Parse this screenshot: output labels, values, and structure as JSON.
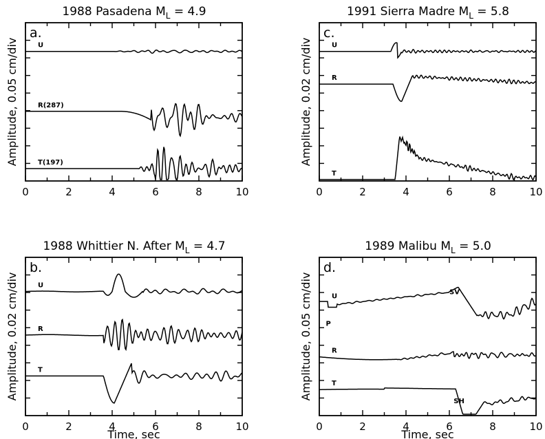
{
  "chart_data": [
    {
      "type": "line",
      "panel": "a.",
      "title_main": "1988 Pasadena M",
      "title_sub": "L",
      "title_rest": " = 4.9",
      "ylabel": "Amplitude, 0.05 cm/div",
      "xlabel": "",
      "xlim": [
        0,
        10
      ],
      "x_ticks": [
        "0",
        "2",
        "4",
        "6",
        "8",
        "10"
      ],
      "grid": false,
      "series": [
        {
          "name": "U",
          "baseline": 0.8,
          "onset": 4.0,
          "shape": "pas-u",
          "scale": 0.25
        },
        {
          "name": "R(287)",
          "baseline": 3.0,
          "onset": 4.4,
          "shape": "pas-r",
          "scale": 1.0
        },
        {
          "name": "T(197)",
          "baseline": 5.1,
          "onset": 5.2,
          "shape": "pas-t",
          "scale": 1.2
        }
      ],
      "phase_labels": []
    },
    {
      "type": "line",
      "panel": "c.",
      "title_main": "1991 Sierra Madre M",
      "title_sub": "L",
      "title_rest": " = 5.8",
      "ylabel": "Amplitude, 0.02 cm/div",
      "xlabel": "",
      "xlim": [
        0,
        10
      ],
      "x_ticks": [
        "0",
        "2",
        "4",
        "6",
        "8",
        "10"
      ],
      "grid": false,
      "series": [
        {
          "name": "U",
          "baseline": 0.8,
          "onset": 3.3,
          "shape": "sm-u",
          "scale": 0.5
        },
        {
          "name": "R",
          "baseline": 2.0,
          "onset": 3.4,
          "shape": "sm-r",
          "scale": 1.0
        },
        {
          "name": "T",
          "baseline": 5.5,
          "onset": 3.5,
          "shape": "sm-t",
          "scale": 1.0
        }
      ],
      "phase_labels": []
    },
    {
      "type": "line",
      "panel": "b.",
      "title_main": "1988 Whittier N. After M",
      "title_sub": "L",
      "title_rest": " = 4.7",
      "ylabel": "Amplitude, 0.02 cm/div",
      "xlabel": "Time, sec",
      "xlim": [
        0,
        10
      ],
      "x_ticks": [
        "0",
        "2",
        "4",
        "6",
        "8",
        "10"
      ],
      "grid": false,
      "series": [
        {
          "name": "U",
          "baseline": 1.0,
          "onset": 3.6,
          "shape": "wh-u",
          "scale": 1.0
        },
        {
          "name": "R",
          "baseline": 2.6,
          "onset": 3.6,
          "shape": "wh-r",
          "scale": 1.0
        },
        {
          "name": "T",
          "baseline": 4.1,
          "onset": 3.6,
          "shape": "wh-t",
          "scale": 1.0
        }
      ],
      "phase_labels": []
    },
    {
      "type": "line",
      "panel": "d.",
      "title_main": "1989 Malibu M",
      "title_sub": "L",
      "title_rest": " = 5.0",
      "ylabel": "Amplitude, 0.05 cm/div",
      "xlabel": "Time, sec",
      "xlim": [
        0,
        10
      ],
      "x_ticks": [
        "0",
        "2",
        "4",
        "6",
        "8",
        "10"
      ],
      "grid": false,
      "series": [
        {
          "name": "U",
          "baseline": 1.4,
          "onset": 0.5,
          "shape": "ma-u",
          "scale": 1.0
        },
        {
          "name": "R",
          "baseline": 3.4,
          "onset": 0.5,
          "shape": "ma-r",
          "scale": 1.0
        },
        {
          "name": "T",
          "baseline": 4.6,
          "onset": 0.5,
          "shape": "ma-t",
          "scale": 1.0
        }
      ],
      "phase_labels": [
        {
          "text": "SV",
          "x": 6.0,
          "trace": "U"
        },
        {
          "text": "P",
          "x": 0.3,
          "trace": "U"
        },
        {
          "text": "SH",
          "x": 6.2,
          "trace": "T"
        }
      ]
    }
  ]
}
